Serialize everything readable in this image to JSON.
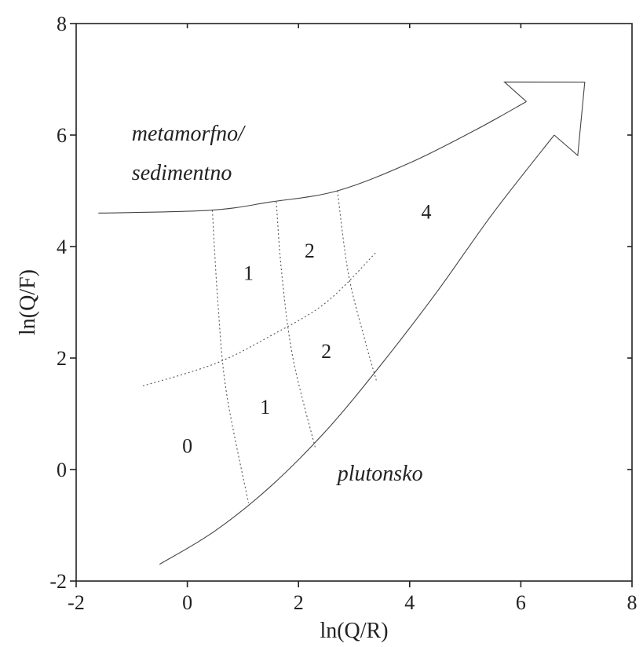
{
  "chart_data": {
    "type": "scatter",
    "xlabel": "ln(Q/R)",
    "ylabel": "ln(Q/F)",
    "xlim": [
      -2,
      8
    ],
    "ylim": [
      -2,
      8
    ],
    "x_ticks": [
      "-2",
      "0",
      "2",
      "4",
      "6",
      "8"
    ],
    "y_ticks": [
      "-2",
      "0",
      "2",
      "4",
      "6",
      "8"
    ],
    "grid": false,
    "field_labels": [
      {
        "text": "metamorfno/",
        "x": -1.0,
        "y": 5.9,
        "italic": true
      },
      {
        "text": "sedimentno",
        "x": -1.0,
        "y": 5.2,
        "italic": true
      },
      {
        "text": "plutonsko",
        "x": 2.7,
        "y": -0.2,
        "italic": true
      }
    ],
    "region_labels": [
      {
        "text": "0",
        "x": 0.0,
        "y": 0.3
      },
      {
        "text": "1",
        "x": 1.1,
        "y": 3.4
      },
      {
        "text": "1",
        "x": 1.4,
        "y": 1.0
      },
      {
        "text": "2",
        "x": 2.2,
        "y": 3.8
      },
      {
        "text": "2",
        "x": 2.5,
        "y": 2.0
      },
      {
        "text": "4",
        "x": 4.3,
        "y": 4.5
      }
    ],
    "curves": {
      "upper_boundary": [
        [
          -1.6,
          4.6
        ],
        [
          0.4,
          4.65
        ],
        [
          1.5,
          4.8
        ],
        [
          2.7,
          5.0
        ],
        [
          4.0,
          5.5
        ],
        [
          5.2,
          6.1
        ],
        [
          6.1,
          6.6
        ]
      ],
      "lower_boundary": [
        [
          -0.5,
          -1.7
        ],
        [
          0.5,
          -1.1
        ],
        [
          1.5,
          -0.3
        ],
        [
          2.5,
          0.7
        ],
        [
          3.5,
          1.9
        ],
        [
          4.5,
          3.2
        ],
        [
          5.5,
          4.6
        ],
        [
          6.6,
          6.0
        ]
      ],
      "middle_dotted": [
        [
          -0.8,
          1.5
        ],
        [
          0.5,
          1.9
        ],
        [
          1.5,
          2.4
        ],
        [
          2.5,
          3.0
        ],
        [
          3.4,
          3.9
        ]
      ],
      "divider_1": [
        [
          0.45,
          4.65
        ],
        [
          0.55,
          3.0
        ],
        [
          0.7,
          1.4
        ],
        [
          1.1,
          -0.6
        ]
      ],
      "divider_2": [
        [
          1.6,
          4.8
        ],
        [
          1.7,
          3.5
        ],
        [
          1.9,
          2.0
        ],
        [
          2.3,
          0.4
        ]
      ],
      "divider_3": [
        [
          2.7,
          5.0
        ],
        [
          2.9,
          3.5
        ],
        [
          3.2,
          2.3
        ],
        [
          3.4,
          1.6
        ]
      ]
    },
    "arrow": {
      "tip": [
        7.15,
        6.95
      ]
    }
  }
}
